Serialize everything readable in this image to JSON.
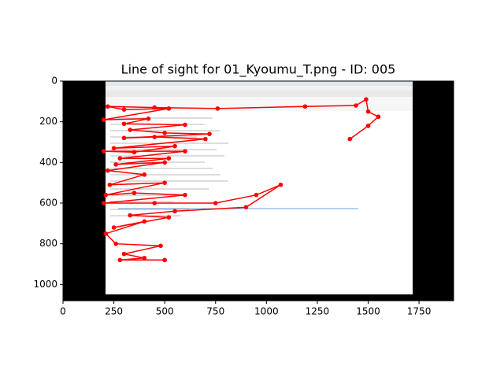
{
  "chart_data": {
    "type": "line",
    "title": "Line of sight for 01_Kyoumu_T.png - ID: 005",
    "x": [
      1410,
      1500,
      1550,
      1500,
      1490,
      1440,
      1190,
      760,
      450,
      220,
      300,
      520,
      200,
      420,
      300,
      600,
      330,
      500,
      720,
      300,
      450,
      700,
      250,
      550,
      350,
      200,
      600,
      280,
      520,
      260,
      500,
      220,
      400,
      230,
      500,
      210,
      350,
      600,
      200,
      450,
      750,
      950,
      1070,
      900,
      550,
      330,
      520,
      250,
      400,
      210,
      260,
      480,
      300,
      400,
      280,
      500
    ],
    "values": [
      285,
      220,
      175,
      150,
      90,
      120,
      125,
      135,
      130,
      125,
      140,
      135,
      190,
      185,
      210,
      215,
      240,
      255,
      260,
      280,
      275,
      285,
      330,
      320,
      350,
      345,
      345,
      380,
      380,
      410,
      400,
      440,
      460,
      510,
      500,
      560,
      550,
      560,
      600,
      600,
      600,
      560,
      510,
      620,
      640,
      660,
      670,
      720,
      690,
      750,
      800,
      810,
      850,
      870,
      880,
      880
    ],
    "color": "#ff0000",
    "xlim": [
      0,
      1920
    ],
    "ylim": [
      1080,
      0
    ],
    "xticks": [
      0,
      250,
      500,
      750,
      1000,
      1250,
      1500,
      1750
    ],
    "yticks": [
      0,
      200,
      400,
      600,
      800,
      1000
    ]
  }
}
